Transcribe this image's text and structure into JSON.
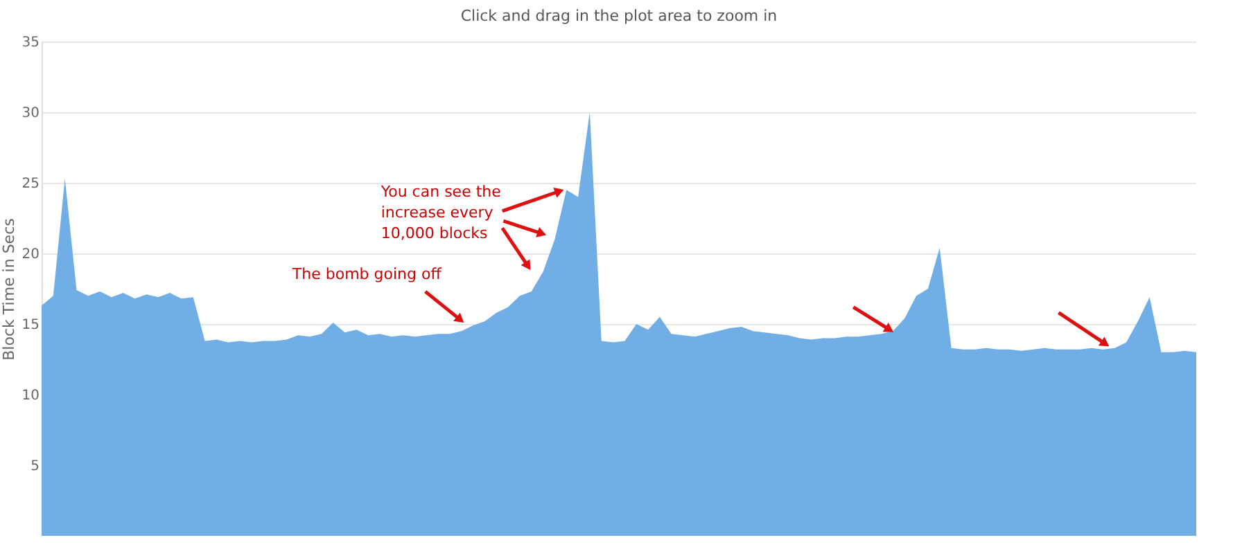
{
  "chart_data": {
    "type": "area",
    "subtitle": "Click and drag in the plot area to zoom in",
    "ylabel": "Block Time in Secs",
    "categories": [
      null,
      null,
      null,
      null,
      null,
      null,
      null,
      null,
      null,
      null,
      null,
      null,
      null,
      null,
      null,
      null,
      null,
      null,
      null,
      null,
      null,
      null,
      null,
      null,
      null,
      null,
      null,
      null,
      null,
      null,
      null,
      null,
      null,
      null,
      null,
      null,
      null,
      null,
      null,
      null,
      null,
      null,
      null,
      null,
      null,
      null,
      null,
      null,
      null,
      null,
      null,
      null,
      null,
      null,
      null,
      null,
      null,
      null,
      null,
      null,
      null,
      null,
      null,
      null,
      null,
      null,
      null,
      null,
      null,
      null,
      null,
      null,
      null,
      null,
      null,
      null,
      null,
      null,
      null,
      null,
      null,
      null,
      null,
      null,
      null,
      null,
      null,
      null,
      null,
      null,
      null,
      null,
      null,
      null,
      null,
      null,
      null,
      null,
      null,
      null
    ],
    "values": [
      16.3,
      17.0,
      25.3,
      17.4,
      17.0,
      17.3,
      16.9,
      17.2,
      16.8,
      17.1,
      16.9,
      17.2,
      16.8,
      16.9,
      13.8,
      13.9,
      13.7,
      13.8,
      13.7,
      13.8,
      13.8,
      13.9,
      14.2,
      14.1,
      14.3,
      15.1,
      14.4,
      14.6,
      14.2,
      14.3,
      14.1,
      14.2,
      14.1,
      14.2,
      14.3,
      14.3,
      14.5,
      14.9,
      15.2,
      15.8,
      16.2,
      17.0,
      17.3,
      18.7,
      21.0,
      24.5,
      24.0,
      30.0,
      13.8,
      13.7,
      13.8,
      15.0,
      14.6,
      15.5,
      14.3,
      14.2,
      14.1,
      14.3,
      14.5,
      14.7,
      14.8,
      14.5,
      14.4,
      14.3,
      14.2,
      14.0,
      13.9,
      14.0,
      14.0,
      14.1,
      14.1,
      14.2,
      14.3,
      14.5,
      15.4,
      17.0,
      17.5,
      20.4,
      13.3,
      13.2,
      13.2,
      13.3,
      13.2,
      13.2,
      13.1,
      13.2,
      13.3,
      13.2,
      13.2,
      13.2,
      13.3,
      13.2,
      13.3,
      13.7,
      15.2,
      16.9,
      13.0,
      13.0,
      13.1,
      13.0
    ],
    "color": "#72aee6",
    "ylim": [
      0,
      35
    ],
    "yticks": [
      5,
      10,
      15,
      20,
      25,
      30,
      35
    ],
    "grid": "y",
    "tick_labels": "y",
    "annotations": [
      "You can see the\nincrease every\n10,000 blocks",
      "The bomb going off"
    ]
  }
}
